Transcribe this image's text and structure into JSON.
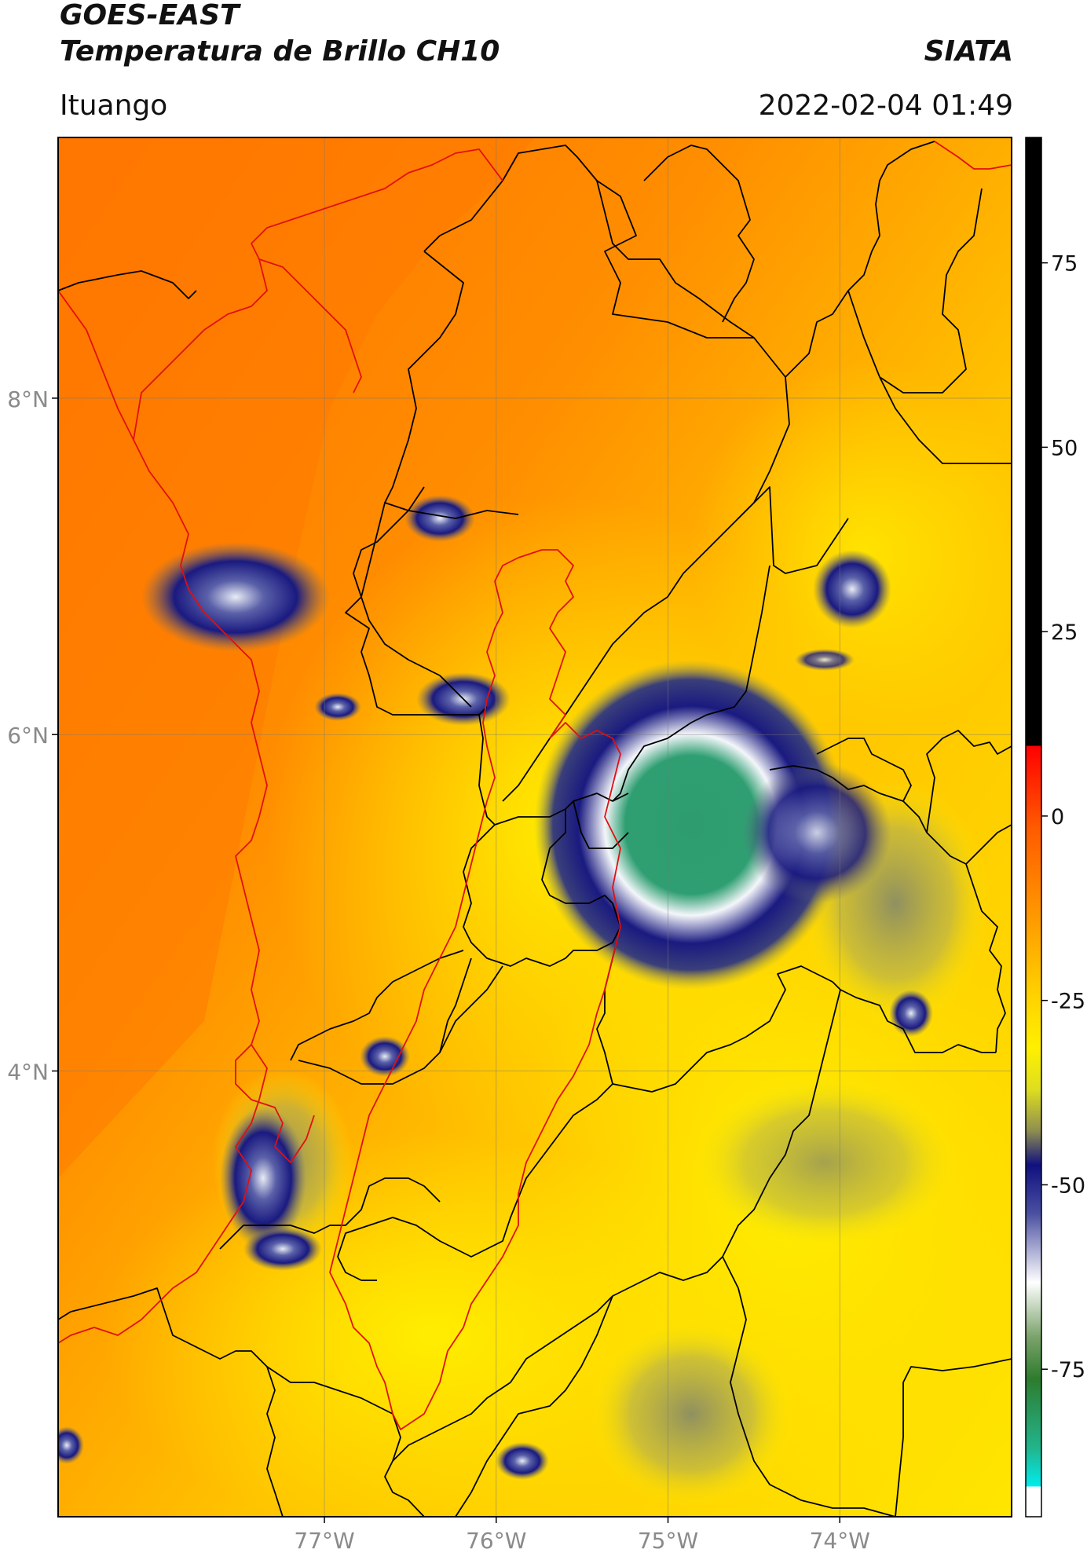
{
  "title": {
    "line1": "GOES-EAST",
    "line2": "Temperatura de Brillo CH10",
    "organization": "SIATA"
  },
  "subtitle": {
    "location": "Ituango",
    "datetime": "2022-02-04 01:49"
  },
  "map": {
    "lat_ticks": [
      {
        "value": 8,
        "label": "8°N"
      },
      {
        "value": 6,
        "label": "6°N"
      },
      {
        "value": 4,
        "label": "4°N"
      }
    ],
    "lon_ticks": [
      {
        "value": -77,
        "label": "77°W"
      },
      {
        "value": -76,
        "label": "76°W"
      },
      {
        "value": -75,
        "label": "75°W"
      },
      {
        "value": -74,
        "label": "74°W"
      }
    ],
    "extent": {
      "lon_min": -78.55,
      "lon_max": -73.0,
      "lat_min": 1.35,
      "lat_max": 9.55
    },
    "colors": {
      "background_orange": "#ff9a00",
      "warm_orange": "#ff7a00",
      "yellow": "#ffee00",
      "olive": "#a7a84a",
      "navy": "#1a1a80",
      "white": "#f2f4f8",
      "green": "#2e9c6e",
      "country_border": "#e01010",
      "department_border": "#000000"
    }
  },
  "colorbar": {
    "ticks": [
      {
        "value": 75,
        "label": "75"
      },
      {
        "value": 50,
        "label": "50"
      },
      {
        "value": 25,
        "label": "25"
      },
      {
        "value": 0,
        "label": "0"
      },
      {
        "value": -25,
        "label": "-25"
      },
      {
        "value": -50,
        "label": "-50"
      },
      {
        "value": -75,
        "label": "-75"
      }
    ],
    "range": [
      -95,
      92
    ]
  }
}
